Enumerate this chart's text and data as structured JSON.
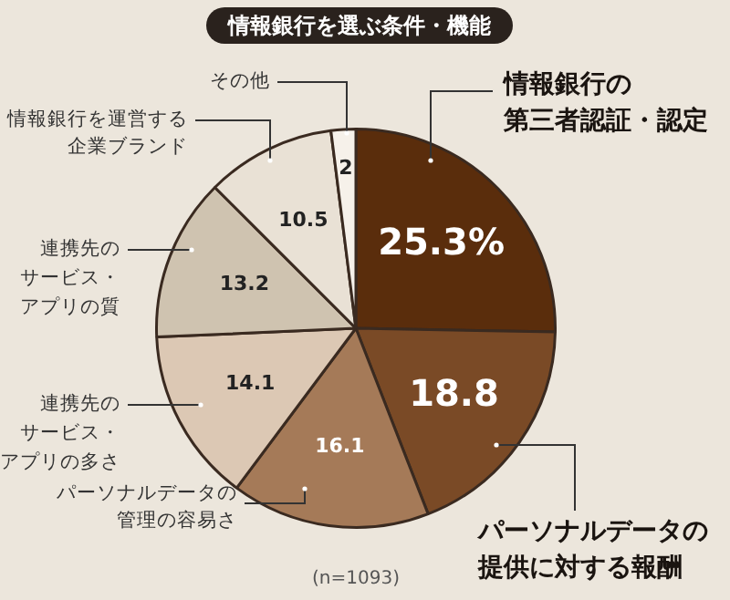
{
  "chart_data": {
    "type": "pie",
    "title": "情報銀行を選ぶ条件・機能",
    "categories": [
      "情報銀行の第三者認証・認定",
      "パーソナルデータの提供に対する報酬",
      "パーソナルデータの管理の容易さ",
      "連携先のサービス・アプリの多さ",
      "連携先のサービス・アプリの質",
      "情報銀行を運営する企業ブランド",
      "その他"
    ],
    "values": [
      25.3,
      18.8,
      16.1,
      14.1,
      13.2,
      10.5,
      2
    ],
    "value_labels": [
      "25.3%",
      "18.8",
      "16.1",
      "14.1",
      "13.2",
      "10.5",
      "2"
    ],
    "colors": [
      "#5a2d0c",
      "#7a4a26",
      "#a57a58",
      "#dcc8b4",
      "#cfc3b0",
      "#e9e1d5",
      "#f6f1ea"
    ],
    "legend": false,
    "annotations": [
      "(n=1093)"
    ]
  }
}
